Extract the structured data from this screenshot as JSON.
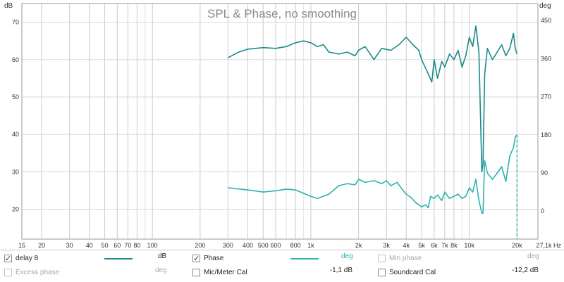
{
  "chart_data": {
    "type": "line",
    "title": "SPL & Phase, no smoothing",
    "ylabel_left": "dB",
    "ylabel_right": "deg",
    "x_unit": "Hz",
    "x_scale": "log",
    "xlim": [
      15,
      27100
    ],
    "ylim_left": [
      12,
      75
    ],
    "ylim_right": [
      -66,
      490
    ],
    "grid": true,
    "x_ticks": [
      {
        "v": 15,
        "t": "15"
      },
      {
        "v": 20,
        "t": "20"
      },
      {
        "v": 30,
        "t": "30"
      },
      {
        "v": 40,
        "t": "40"
      },
      {
        "v": 50,
        "t": "50"
      },
      {
        "v": 60,
        "t": "60"
      },
      {
        "v": 70,
        "t": "70"
      },
      {
        "v": 80,
        "t": "80"
      },
      {
        "v": 100,
        "t": "100"
      },
      {
        "v": 200,
        "t": "200"
      },
      {
        "v": 300,
        "t": "300"
      },
      {
        "v": 400,
        "t": "400"
      },
      {
        "v": 500,
        "t": "500"
      },
      {
        "v": 600,
        "t": "600"
      },
      {
        "v": 800,
        "t": "800"
      },
      {
        "v": 1000,
        "t": "1k"
      },
      {
        "v": 2000,
        "t": "2k"
      },
      {
        "v": 3000,
        "t": "3k"
      },
      {
        "v": 4000,
        "t": "4k"
      },
      {
        "v": 5000,
        "t": "5k"
      },
      {
        "v": 6000,
        "t": "6k"
      },
      {
        "v": 7000,
        "t": "7k"
      },
      {
        "v": 8000,
        "t": "8k"
      },
      {
        "v": 10000,
        "t": "10k"
      },
      {
        "v": 20000,
        "t": "20k"
      },
      {
        "v": 27100,
        "t": "27,1k Hz"
      }
    ],
    "y_ticks_left": [
      20,
      30,
      40,
      50,
      60,
      70
    ],
    "y_ticks_right": [
      0,
      90,
      180,
      270,
      360,
      450
    ],
    "series": [
      {
        "name": "delay 8",
        "unit": "dB",
        "axis": "left",
        "color": "#1a8a8a",
        "x": [
          300,
          350,
          400,
          500,
          600,
          700,
          800,
          900,
          1000,
          1100,
          1200,
          1300,
          1500,
          1700,
          1900,
          2000,
          2200,
          2500,
          2800,
          3200,
          3600,
          4000,
          4400,
          4800,
          5000,
          5400,
          5800,
          6000,
          6300,
          6700,
          7000,
          7500,
          8000,
          8500,
          9000,
          9500,
          10000,
          10500,
          11000,
          11500,
          12000,
          12200,
          12500,
          13000,
          14000,
          15000,
          16000,
          17000,
          18000,
          19000,
          19500,
          20000
        ],
        "values": [
          60.5,
          62,
          62.8,
          63.2,
          63,
          63.5,
          64.5,
          65,
          64.5,
          63.5,
          64,
          62,
          61.5,
          62,
          61,
          62.5,
          63.5,
          60,
          63,
          62.5,
          64,
          66,
          64,
          62.5,
          60,
          57,
          54,
          60,
          55,
          59.5,
          58,
          61.5,
          60,
          62.5,
          58,
          61,
          66,
          63.5,
          69,
          62,
          30,
          32,
          56,
          63,
          60,
          62,
          64,
          61,
          63,
          67,
          63,
          61.5
        ]
      },
      {
        "name": "Phase",
        "unit": "deg",
        "axis": "right",
        "color": "#2bb3b0",
        "x": [
          300,
          400,
          500,
          600,
          700,
          800,
          900,
          1000,
          1100,
          1300,
          1500,
          1700,
          1900,
          2000,
          2200,
          2500,
          2800,
          3000,
          3200,
          3500,
          3800,
          4000,
          4300,
          4600,
          5000,
          5300,
          5500,
          5700,
          6000,
          6300,
          6700,
          7000,
          7500,
          8000,
          8500,
          9000,
          9500,
          10000,
          10500,
          11000,
          11500,
          12000,
          12200,
          12500,
          13000,
          14000,
          15000,
          16000,
          17000,
          18000,
          19000,
          19500,
          20000
        ],
        "values": [
          55,
          50,
          45,
          48,
          52,
          50,
          42,
          35,
          30,
          40,
          60,
          65,
          62,
          75,
          68,
          72,
          65,
          72,
          60,
          68,
          50,
          40,
          32,
          20,
          10,
          15,
          8,
          35,
          30,
          38,
          25,
          45,
          30,
          35,
          40,
          30,
          35,
          55,
          45,
          75,
          25,
          -5,
          -5,
          120,
          90,
          75,
          90,
          105,
          70,
          130,
          150,
          175,
          180
        ]
      }
    ]
  },
  "legend": {
    "delay": {
      "label": "delay 8",
      "unit": "dB",
      "checked": true
    },
    "phase": {
      "label": "Phase",
      "unit": "deg",
      "checked": true
    },
    "minphase": {
      "label": "Min phase",
      "unit": "deg",
      "checked": false
    },
    "excess": {
      "label": "Excess phase",
      "unit": "deg",
      "checked": false
    },
    "mic": {
      "label": "Mic/Meter Cal",
      "value": "-1,1 dB",
      "checked": false
    },
    "soundcard": {
      "label": "Soundcard Cal",
      "value": "-12,2 dB",
      "checked": false
    }
  }
}
